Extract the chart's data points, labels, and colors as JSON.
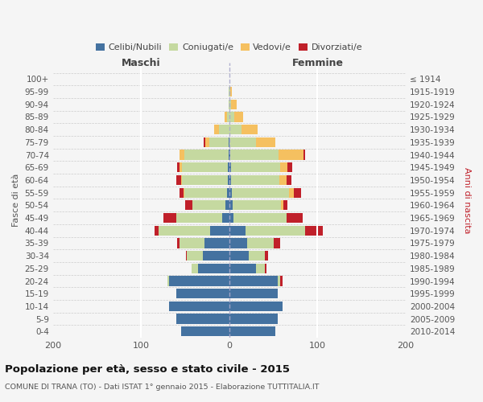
{
  "age_groups_bottom_to_top": [
    "0-4",
    "5-9",
    "10-14",
    "15-19",
    "20-24",
    "25-29",
    "30-34",
    "35-39",
    "40-44",
    "45-49",
    "50-54",
    "55-59",
    "60-64",
    "65-69",
    "70-74",
    "75-79",
    "80-84",
    "85-89",
    "90-94",
    "95-99",
    "100+"
  ],
  "birth_years_bottom_to_top": [
    "2010-2014",
    "2005-2009",
    "2000-2004",
    "1995-1999",
    "1990-1994",
    "1985-1989",
    "1980-1984",
    "1975-1979",
    "1970-1974",
    "1965-1969",
    "1960-1964",
    "1955-1959",
    "1950-1954",
    "1945-1949",
    "1940-1944",
    "1935-1939",
    "1930-1934",
    "1925-1929",
    "1920-1924",
    "1915-1919",
    "≤ 1914"
  ],
  "maschi": {
    "celibi": [
      55,
      60,
      68,
      60,
      68,
      35,
      30,
      28,
      22,
      8,
      4,
      3,
      2,
      2,
      1,
      1,
      0,
      0,
      0,
      0,
      0
    ],
    "coniugati": [
      0,
      0,
      0,
      0,
      2,
      8,
      18,
      28,
      58,
      52,
      38,
      48,
      52,
      52,
      50,
      22,
      12,
      3,
      1,
      1,
      0
    ],
    "vedovi": [
      0,
      0,
      0,
      0,
      0,
      0,
      0,
      0,
      0,
      0,
      0,
      1,
      1,
      2,
      5,
      4,
      5,
      2,
      0,
      0,
      0
    ],
    "divorziati": [
      0,
      0,
      0,
      0,
      0,
      0,
      1,
      3,
      5,
      15,
      8,
      4,
      5,
      3,
      0,
      2,
      0,
      0,
      0,
      0,
      0
    ]
  },
  "femmine": {
    "nubili": [
      52,
      55,
      60,
      55,
      55,
      30,
      22,
      20,
      18,
      5,
      4,
      3,
      2,
      2,
      1,
      0,
      0,
      0,
      0,
      0,
      0
    ],
    "coniugate": [
      0,
      0,
      0,
      0,
      3,
      10,
      18,
      30,
      68,
      60,
      55,
      65,
      55,
      56,
      55,
      30,
      14,
      6,
      2,
      1,
      0
    ],
    "vedove": [
      0,
      0,
      0,
      0,
      0,
      0,
      0,
      0,
      0,
      0,
      2,
      5,
      8,
      8,
      28,
      22,
      18,
      10,
      6,
      2,
      0
    ],
    "divorziate": [
      0,
      0,
      0,
      0,
      2,
      2,
      4,
      8,
      20,
      18,
      5,
      8,
      5,
      5,
      2,
      0,
      0,
      0,
      0,
      0,
      0
    ]
  },
  "colors": {
    "celibi_nubili": "#4472a0",
    "coniugati": "#c5d9a0",
    "vedovi": "#f5c060",
    "divorziati": "#c0202a"
  },
  "xlim": 200,
  "title": "Popolazione per età, sesso e stato civile - 2015",
  "subtitle": "COMUNE DI TRANA (TO) - Dati ISTAT 1° gennaio 2015 - Elaborazione TUTTITALIA.IT",
  "xlabel_left": "Maschi",
  "xlabel_right": "Femmine",
  "ylabel_left": "Fasce di età",
  "ylabel_right": "Anni di nascita",
  "legend_labels": [
    "Celibi/Nubili",
    "Coniugati/e",
    "Vedovi/e",
    "Divorziati/e"
  ],
  "background_color": "#f5f5f5"
}
